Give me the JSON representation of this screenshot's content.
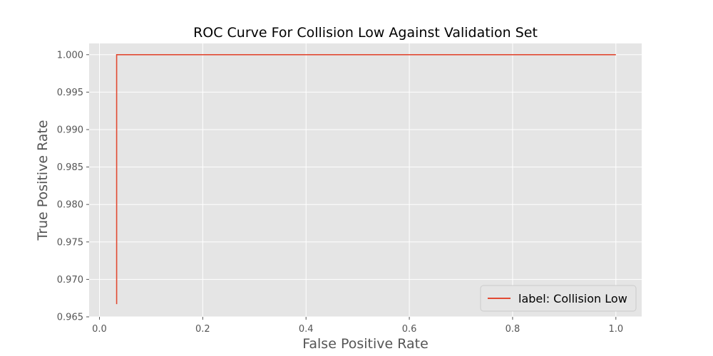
{
  "chart_data": {
    "type": "line",
    "title": "ROC Curve For Collision Low Against Validation Set",
    "xlabel": "False Positive Rate",
    "ylabel": "True Positive Rate",
    "xlim": [
      -0.02,
      1.05
    ],
    "ylim": [
      0.965,
      1.0015
    ],
    "x_ticks": [
      0.0,
      0.2,
      0.4,
      0.6,
      0.8,
      1.0
    ],
    "x_tick_labels": [
      "0.0",
      "0.2",
      "0.4",
      "0.6",
      "0.8",
      "1.0"
    ],
    "y_ticks": [
      0.965,
      0.97,
      0.975,
      0.98,
      0.985,
      0.99,
      0.995,
      1.0
    ],
    "y_tick_labels": [
      "0.965",
      "0.970",
      "0.975",
      "0.980",
      "0.985",
      "0.990",
      "0.995",
      "1.000"
    ],
    "grid": true,
    "legend_position": "lower-right",
    "style": {
      "plot_background": "#e5e5e5",
      "grid_color": "#ffffff",
      "line_color": "#e24a33"
    },
    "series": [
      {
        "name": "label: Collision Low",
        "x": [
          0.0333,
          0.0333,
          1.0
        ],
        "y": [
          0.9667,
          1.0,
          1.0
        ]
      }
    ]
  }
}
